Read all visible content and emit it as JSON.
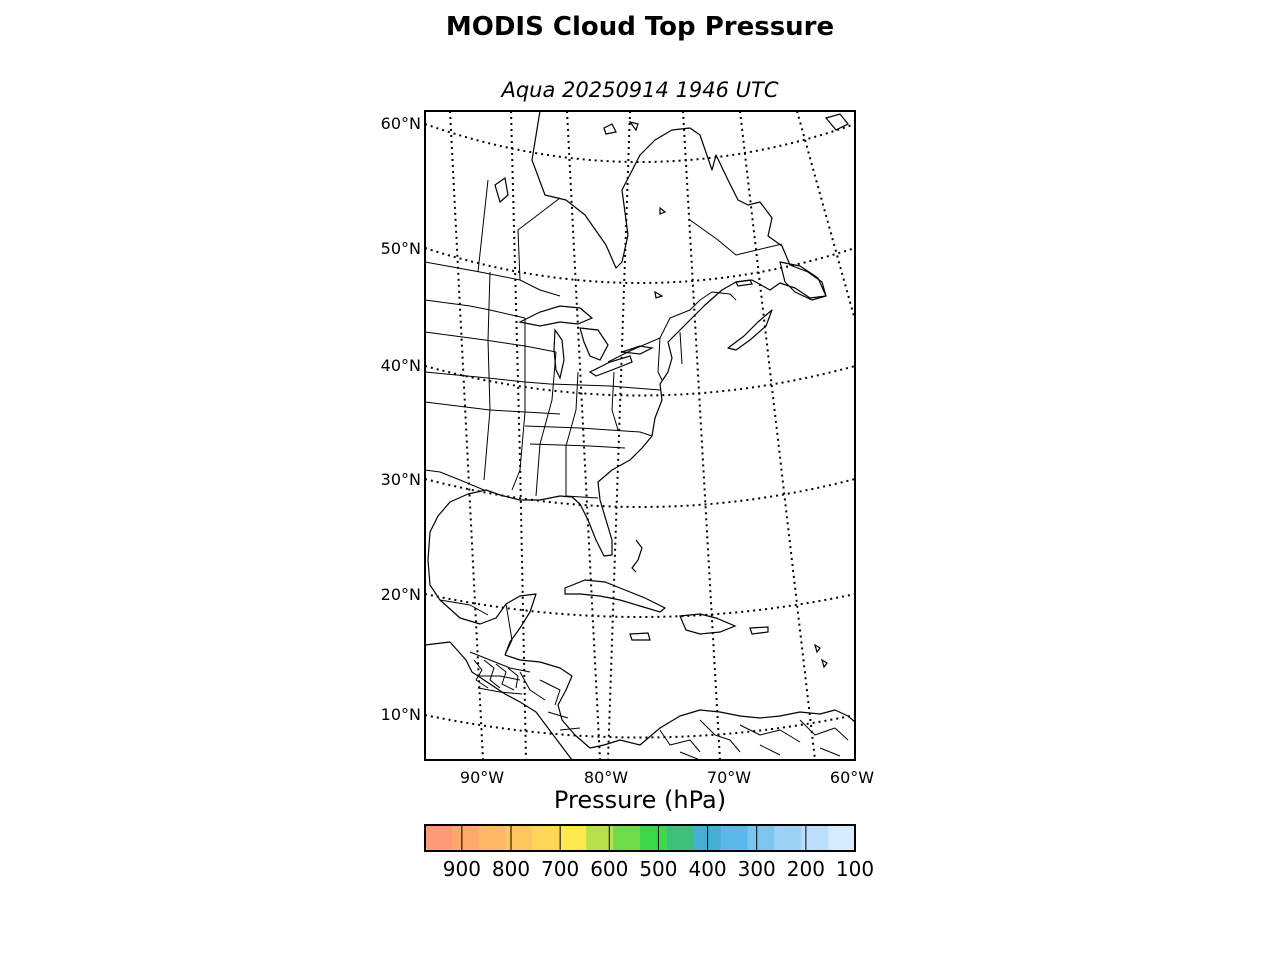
{
  "title": "MODIS Cloud Top Pressure",
  "subtitle": "Aqua 20250914 1946 UTC",
  "map": {
    "latitude_labels": [
      "60°N",
      "50°N",
      "40°N",
      "30°N",
      "20°N",
      "10°N"
    ],
    "longitude_labels": [
      "90°W",
      "80°W",
      "70°W",
      "60°W"
    ],
    "graticule": "dotted",
    "features": [
      "coastlines",
      "country-borders",
      "state-province-borders"
    ]
  },
  "colorbar": {
    "label": "Pressure (hPa)",
    "ticks": [
      "900",
      "800",
      "700",
      "600",
      "500",
      "400",
      "300",
      "200",
      "100"
    ],
    "range": [
      975,
      100
    ],
    "colors": [
      "#ff9a78",
      "#ffa86e",
      "#ffb866",
      "#ffc65e",
      "#ffd658",
      "#fde84e",
      "#b7e04a",
      "#6edc48",
      "#3cd84a",
      "#3cc07a",
      "#45aed2",
      "#5ab8ea",
      "#7cc6ee",
      "#9cd2f4",
      "#bcdefa",
      "#d4eaff"
    ]
  }
}
